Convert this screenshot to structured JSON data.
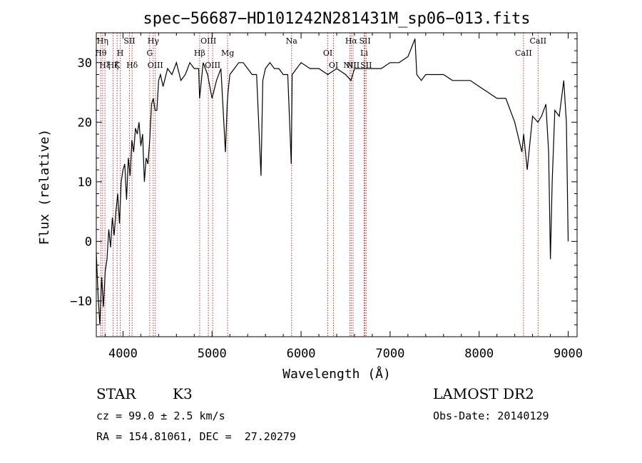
{
  "chart_data": {
    "type": "line",
    "title": "spec−56687−HD101242N281431M_sp06−013.fits",
    "xlabel": "Wavelength (Å)",
    "ylabel": "Flux (relative)",
    "xlim": [
      3700,
      9100
    ],
    "ylim": [
      -16,
      35
    ],
    "xticks": [
      4000,
      5000,
      6000,
      7000,
      8000,
      9000
    ],
    "yticks": [
      -10,
      0,
      10,
      20,
      30
    ],
    "ytick_labels": [
      "−10",
      "0",
      "10",
      "20",
      "30"
    ],
    "grid": false,
    "legend": "none",
    "series": [
      {
        "x": [
          3700,
          3720,
          3740,
          3760,
          3780,
          3800,
          3820,
          3840,
          3860,
          3880,
          3900,
          3920,
          3940,
          3960,
          3980,
          4000,
          4020,
          4040,
          4060,
          4080,
          4100,
          4120,
          4140,
          4160,
          4180,
          4200,
          4220,
          4240,
          4260,
          4280,
          4300,
          4320,
          4340,
          4360,
          4380,
          4400,
          4420,
          4450,
          4500,
          4550,
          4600,
          4650,
          4700,
          4750,
          4800,
          4850,
          4860,
          4900,
          4950,
          5000,
          5050,
          5100,
          5150,
          5170,
          5180,
          5200,
          5250,
          5300,
          5350,
          5400,
          5450,
          5500,
          5550,
          5570,
          5600,
          5650,
          5700,
          5750,
          5800,
          5850,
          5890,
          5900,
          5950,
          6000,
          6100,
          6200,
          6300,
          6400,
          6500,
          6560,
          6600,
          6700,
          6800,
          6900,
          7000,
          7100,
          7200,
          7280,
          7300,
          7350,
          7400,
          7500,
          7600,
          7700,
          7800,
          7900,
          8000,
          8100,
          8200,
          8300,
          8400,
          8480,
          8500,
          8540,
          8600,
          8660,
          8700,
          8750,
          8780,
          8800,
          8820,
          8850,
          8900,
          8950,
          8980,
          9000
        ],
        "y": [
          -2,
          -9,
          -14,
          -6,
          -11,
          -5,
          -3,
          2,
          -1,
          4,
          1,
          5,
          8,
          3,
          10,
          12,
          13,
          7,
          14,
          11,
          17,
          15,
          19,
          18,
          20,
          16,
          18,
          10,
          14,
          13,
          17,
          23,
          24,
          22,
          22,
          27,
          28,
          26,
          29,
          28,
          30,
          27,
          28,
          30,
          29,
          29,
          24,
          30,
          28,
          24,
          27,
          29,
          15,
          23,
          25,
          28,
          29,
          30,
          30,
          29,
          28,
          28,
          11,
          27,
          29,
          30,
          29,
          29,
          28,
          28,
          13,
          28,
          29,
          30,
          29,
          29,
          28,
          29,
          28,
          27,
          29,
          29,
          29,
          29,
          30,
          30,
          31,
          34,
          28,
          27,
          28,
          28,
          28,
          27,
          27,
          27,
          26,
          25,
          24,
          24,
          20,
          15,
          18,
          12,
          21,
          20,
          21,
          23,
          15,
          -3,
          10,
          22,
          21,
          27,
          20,
          0
        ]
      }
    ],
    "lines": [
      {
        "w": 3750,
        "label": "Hθ",
        "row": 2
      },
      {
        "w": 3771,
        "label": "Hη",
        "row": 1
      },
      {
        "w": 3797,
        "label": "Hξ",
        "row": 3
      },
      {
        "w": 3889,
        "label": "Hζ",
        "row": 3
      },
      {
        "w": 3934,
        "label": "K",
        "row": 3
      },
      {
        "w": 3969,
        "label": "H",
        "row": 2
      },
      {
        "w": 4072,
        "label": "SII",
        "row": 1
      },
      {
        "w": 4102,
        "label": "Hδ",
        "row": 3
      },
      {
        "w": 4300,
        "label": "G",
        "row": 2
      },
      {
        "w": 4340,
        "label": "Hγ",
        "row": 1
      },
      {
        "w": 4363,
        "label": "OIII",
        "row": 3
      },
      {
        "w": 4861,
        "label": "Hβ",
        "row": 2
      },
      {
        "w": 4959,
        "label": "OIII",
        "row": 1
      },
      {
        "w": 5007,
        "label": "OIII",
        "row": 3
      },
      {
        "w": 5175,
        "label": "Mg",
        "row": 2
      },
      {
        "w": 5893,
        "label": "Na",
        "row": 1
      },
      {
        "w": 6300,
        "label": "OI",
        "row": 2
      },
      {
        "w": 6364,
        "label": "OI",
        "row": 3
      },
      {
        "w": 6548,
        "label": "NII",
        "row": 3
      },
      {
        "w": 6563,
        "label": "Hα",
        "row": 1
      },
      {
        "w": 6584,
        "label": "NII",
        "row": 3
      },
      {
        "w": 6708,
        "label": "Li",
        "row": 2
      },
      {
        "w": 6717,
        "label": "SII",
        "row": 1
      },
      {
        "w": 6731,
        "label": "SII",
        "row": 3
      },
      {
        "w": 8498,
        "label": "CaII",
        "row": 2
      },
      {
        "w": 8662,
        "label": "CaII",
        "row": 1
      }
    ]
  },
  "info": {
    "class": "STAR",
    "subclass": "K3",
    "cz": "cz = 99.0 ± 2.5 km/s",
    "radec": "RA = 154.81061, DEC =  27.20279",
    "survey": "LAMOST DR2",
    "obsdate": "Obs-Date: 20140129"
  }
}
